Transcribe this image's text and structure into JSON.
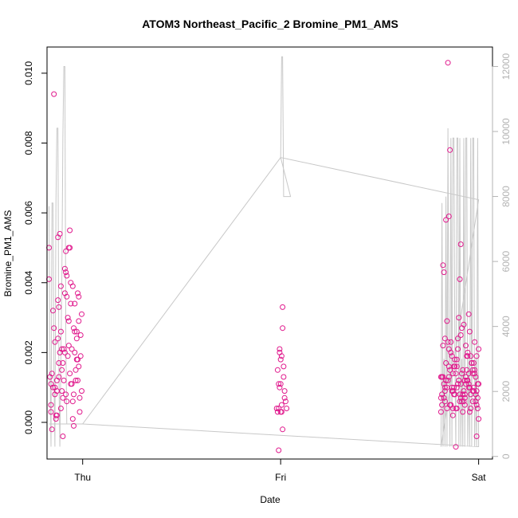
{
  "chart_data": {
    "type": "scatter",
    "title": "ATOM3 Northeast_Pacific_2 Bromine_PM1_AMS",
    "xlabel": "Date",
    "ylabel": "Bromine_PM1_AMS",
    "xlim": [
      -0.18,
      2.07
    ],
    "ylim": [
      -0.00105,
      0.01075
    ],
    "y2lim": [
      -80,
      12600
    ],
    "x_ticks": [
      {
        "value": 0,
        "label": "Thu"
      },
      {
        "value": 1,
        "label": "Fri"
      },
      {
        "value": 2,
        "label": "Sat"
      }
    ],
    "y_ticks": [
      {
        "value": 0,
        "label": "0.000"
      },
      {
        "value": 0.002,
        "label": "0.002"
      },
      {
        "value": 0.004,
        "label": "0.004"
      },
      {
        "value": 0.006,
        "label": "0.006"
      },
      {
        "value": 0.008,
        "label": "0.008"
      },
      {
        "value": 0.01,
        "label": "0.010"
      }
    ],
    "y2_ticks": [
      {
        "value": 0,
        "label": "0"
      },
      {
        "value": 2000,
        "label": "2000"
      },
      {
        "value": 4000,
        "label": "4000"
      },
      {
        "value": 6000,
        "label": "6000"
      },
      {
        "value": 8000,
        "label": "8000"
      },
      {
        "value": 10000,
        "label": "10000"
      },
      {
        "value": 12000,
        "label": "12000"
      }
    ],
    "colors": {
      "points": "#e0188c",
      "secondary_line": "#c8c8c8",
      "secondary_axis": "#b3b3b3"
    },
    "series": [
      {
        "kind": "points",
        "axis": "left",
        "x": [
          -0.17,
          -0.17,
          -0.165,
          -0.16,
          -0.16,
          -0.155,
          -0.155,
          -0.15,
          -0.15,
          -0.145,
          -0.145,
          -0.14,
          -0.14,
          -0.135,
          -0.135,
          -0.13,
          -0.13,
          -0.125,
          -0.125,
          -0.12,
          -0.12,
          -0.115,
          -0.115,
          -0.11,
          -0.11,
          -0.105,
          -0.105,
          -0.1,
          -0.1,
          -0.095,
          -0.095,
          -0.09,
          -0.09,
          -0.085,
          -0.085,
          -0.08,
          -0.08,
          -0.075,
          -0.075,
          -0.07,
          -0.07,
          -0.065,
          -0.065,
          -0.06,
          -0.06,
          -0.055,
          -0.055,
          -0.05,
          -0.05,
          -0.045,
          -0.045,
          -0.04,
          -0.04,
          -0.035,
          -0.035,
          -0.03,
          -0.03,
          -0.025,
          -0.025,
          -0.02,
          -0.02,
          -0.015,
          -0.015,
          -0.01,
          -0.01,
          -0.005,
          -0.005,
          -0.16,
          -0.14,
          -0.13,
          -0.12,
          -0.11,
          -0.1,
          -0.09,
          -0.08,
          -0.07,
          -0.06,
          -0.05,
          -0.04,
          -0.03,
          -0.02,
          -0.125,
          -0.105,
          -0.085,
          -0.065,
          -0.045,
          -0.025,
          0.98,
          0.985,
          0.99,
          0.99,
          0.995,
          0.995,
          1.0,
          1.0,
          1.005,
          1.005,
          1.01,
          1.01,
          1.015,
          1.02,
          1.025,
          1.03,
          0.99,
          1.0,
          1.01,
          1.02,
          1.015,
          0.995,
          1.005,
          0.985,
          1.81,
          1.815,
          1.82,
          1.825,
          1.83,
          1.835,
          1.84,
          1.845,
          1.85,
          1.855,
          1.86,
          1.865,
          1.87,
          1.875,
          1.88,
          1.885,
          1.89,
          1.895,
          1.9,
          1.905,
          1.91,
          1.915,
          1.92,
          1.925,
          1.93,
          1.935,
          1.94,
          1.945,
          1.95,
          1.955,
          1.96,
          1.965,
          1.97,
          1.975,
          1.98,
          1.985,
          1.99,
          1.995,
          2.0,
          1.81,
          1.82,
          1.83,
          1.84,
          1.85,
          1.86,
          1.87,
          1.88,
          1.89,
          1.9,
          1.91,
          1.92,
          1.93,
          1.94,
          1.95,
          1.96,
          1.97,
          1.98,
          1.99,
          2.0,
          1.815,
          1.825,
          1.835,
          1.845,
          1.855,
          1.865,
          1.875,
          1.885,
          1.895,
          1.905,
          1.915,
          1.925,
          1.935,
          1.945,
          1.955,
          1.965,
          1.975,
          1.985,
          1.995,
          1.82,
          1.84,
          1.86,
          1.88,
          1.9,
          1.92,
          1.94,
          1.96,
          1.98,
          2.0,
          1.83,
          1.85,
          1.87,
          1.89,
          1.91,
          1.93,
          1.95,
          1.97,
          1.99,
          1.825,
          1.845,
          1.865,
          1.885,
          1.905,
          1.925,
          1.945,
          1.965,
          1.985,
          1.81,
          1.83,
          1.85,
          1.87,
          1.89,
          1.91,
          1.93,
          1.95,
          1.97,
          1.99,
          1.815,
          1.835,
          1.855,
          1.875,
          1.895,
          1.915,
          1.935,
          1.955,
          1.975,
          1.995
        ],
        "y": [
          0.005,
          0.0041,
          0.0013,
          0.0011,
          0.0003,
          -0.0002,
          0.0014,
          0.001,
          0.0032,
          0.0094,
          0.0027,
          0.0023,
          0.0008,
          0.0002,
          0.0001,
          0.0012,
          0.0009,
          0.0053,
          0.0035,
          0.0033,
          0.0017,
          0.002,
          0.0054,
          0.0039,
          0.0026,
          0.0015,
          0.0009,
          0.0007,
          -0.0004,
          0.0012,
          0.0021,
          0.0037,
          0.0044,
          0.0043,
          0.0049,
          0.0042,
          0.0036,
          0.003,
          0.0019,
          0.0029,
          0.005,
          0.005,
          0.0055,
          0.004,
          0.0034,
          0.0021,
          0.0011,
          0.0006,
          0.0001,
          -0.0001,
          0.0008,
          0.0034,
          0.002,
          0.0012,
          0.0015,
          0.0026,
          0.0024,
          0.0018,
          0.0037,
          0.0029,
          0.0016,
          0.0007,
          0.0003,
          0.0019,
          0.0025,
          0.0031,
          0.0009,
          0.0005,
          0.001,
          0.0002,
          0.0013,
          0.0004,
          0.0017,
          0.002,
          0.0006,
          0.0022,
          0.0011,
          0.0039,
          0.0026,
          0.0018,
          0.0036,
          0.0024,
          0.0021,
          0.0008,
          0.0014,
          0.0027,
          0.0012,
          0.0004,
          0.0003,
          0.0011,
          0.0004,
          0.0021,
          0.002,
          0.0018,
          0.0011,
          0.0005,
          0.0003,
          0.0033,
          0.0027,
          0.0016,
          0.0009,
          0.0006,
          0.0004,
          -0.0008,
          0.0003,
          -0.0002,
          0.0007,
          0.0013,
          0.001,
          0.0019,
          0.0015,
          0.0003,
          0.0008,
          0.0045,
          0.0043,
          0.0024,
          0.0058,
          0.0029,
          0.0103,
          0.0059,
          0.0078,
          0.0023,
          0.0019,
          0.0014,
          0.001,
          0.0008,
          -0.0007,
          0.0004,
          0.0021,
          0.003,
          0.0041,
          0.0051,
          0.0027,
          0.0015,
          0.0009,
          0.0005,
          0.0022,
          0.0012,
          0.0019,
          0.0031,
          0.0026,
          0.0008,
          0.0017,
          0.0014,
          0.001,
          0.0023,
          0.0006,
          -0.0004,
          0.0011,
          0.0001,
          0.0007,
          0.0013,
          0.0009,
          0.0004,
          0.0016,
          0.002,
          0.0002,
          0.0018,
          0.001,
          0.0012,
          0.0025,
          0.0003,
          0.0008,
          0.0015,
          0.0011,
          0.0019,
          0.0006,
          0.0014,
          0.0009,
          0.0021,
          0.0013,
          0.0007,
          0.0017,
          0.0012,
          0.0005,
          0.001,
          0.0016,
          0.0004,
          0.0024,
          0.0008,
          0.0014,
          0.0006,
          0.0011,
          0.002,
          0.0003,
          0.0017,
          0.0009,
          0.0013,
          0.0007,
          0.0022,
          0.001,
          0.0005,
          0.0016,
          0.0012,
          0.0008,
          0.0019,
          0.0004,
          0.0015,
          0.0011,
          0.0006,
          0.0013,
          0.0009,
          0.0018,
          0.0007,
          0.0012,
          0.001,
          0.0015,
          0.0005,
          0.0011,
          0.0023,
          0.0009,
          0.0014,
          0.0006,
          0.0028,
          0.0012,
          0.0017,
          0.0008,
          0.0013,
          0.001,
          0.0021,
          0.0004,
          0.0016,
          0.0011,
          0.0007,
          0.0014,
          0.0009,
          0.0019,
          0.0005,
          0.0012,
          0.0015,
          0.0008,
          0.0011,
          0.0006,
          0.0013,
          0.001,
          0.0017,
          0.0004
        ]
      },
      {
        "kind": "line",
        "axis": "right",
        "x": [
          -0.17,
          -0.165,
          -0.16,
          -0.155,
          -0.15,
          -0.145,
          -0.14,
          -0.135,
          -0.13,
          -0.125,
          -0.12,
          -0.115,
          -0.11,
          -0.105,
          -0.1,
          -0.095,
          -0.09,
          -0.085,
          -0.08,
          -0.075,
          -0.07,
          -0.065,
          -0.06,
          -0.055,
          -0.05,
          -0.045,
          -0.04,
          -0.035,
          -0.03,
          -0.025,
          -0.02,
          -0.015,
          -0.01,
          -0.005,
          0.0,
          1.0,
          1.005,
          1.01,
          1.015,
          1.02,
          1.025,
          1.03,
          1.035,
          1.04,
          1.045,
          1.05,
          1.0,
          2.0,
          1.81,
          1.815,
          1.82,
          1.825,
          1.83,
          1.835,
          1.84,
          1.845,
          1.85,
          1.855,
          1.86,
          1.865,
          1.87,
          1.875,
          1.88,
          1.885,
          1.89,
          1.895,
          1.9,
          1.905,
          1.91,
          1.915,
          1.92,
          1.925,
          1.93,
          1.935,
          1.94,
          1.945,
          1.95,
          1.955,
          1.96,
          1.965,
          1.97,
          1.975,
          1.98,
          1.985,
          1.99,
          1.995,
          2.0,
          0.0,
          -0.17
        ],
        "y": [
          7700,
          3000,
          300,
          7800,
          7800,
          2500,
          300,
          7800,
          10100,
          10100,
          2500,
          300,
          3000,
          5500,
          9800,
          12000,
          12000,
          3500,
          1000,
          1000,
          1000,
          1000,
          1000,
          1000,
          1000,
          1000,
          1000,
          1000,
          1000,
          1000,
          1000,
          1000,
          1000,
          1000,
          1000,
          9200,
          12300,
          12300,
          8000,
          8000,
          8000,
          8000,
          8000,
          8000,
          8000,
          8000,
          9200,
          7900,
          300,
          7800,
          300,
          3000,
          300,
          8000,
          300,
          10100,
          3000,
          300,
          9800,
          300,
          9800,
          9800,
          3000,
          300,
          9800,
          9800,
          300,
          9800,
          300,
          3000,
          300,
          9800,
          300,
          9800,
          9800,
          300,
          3000,
          300,
          9800,
          300,
          9800,
          9800,
          300,
          3000,
          300,
          9800,
          300,
          1000,
          1000
        ]
      }
    ]
  }
}
